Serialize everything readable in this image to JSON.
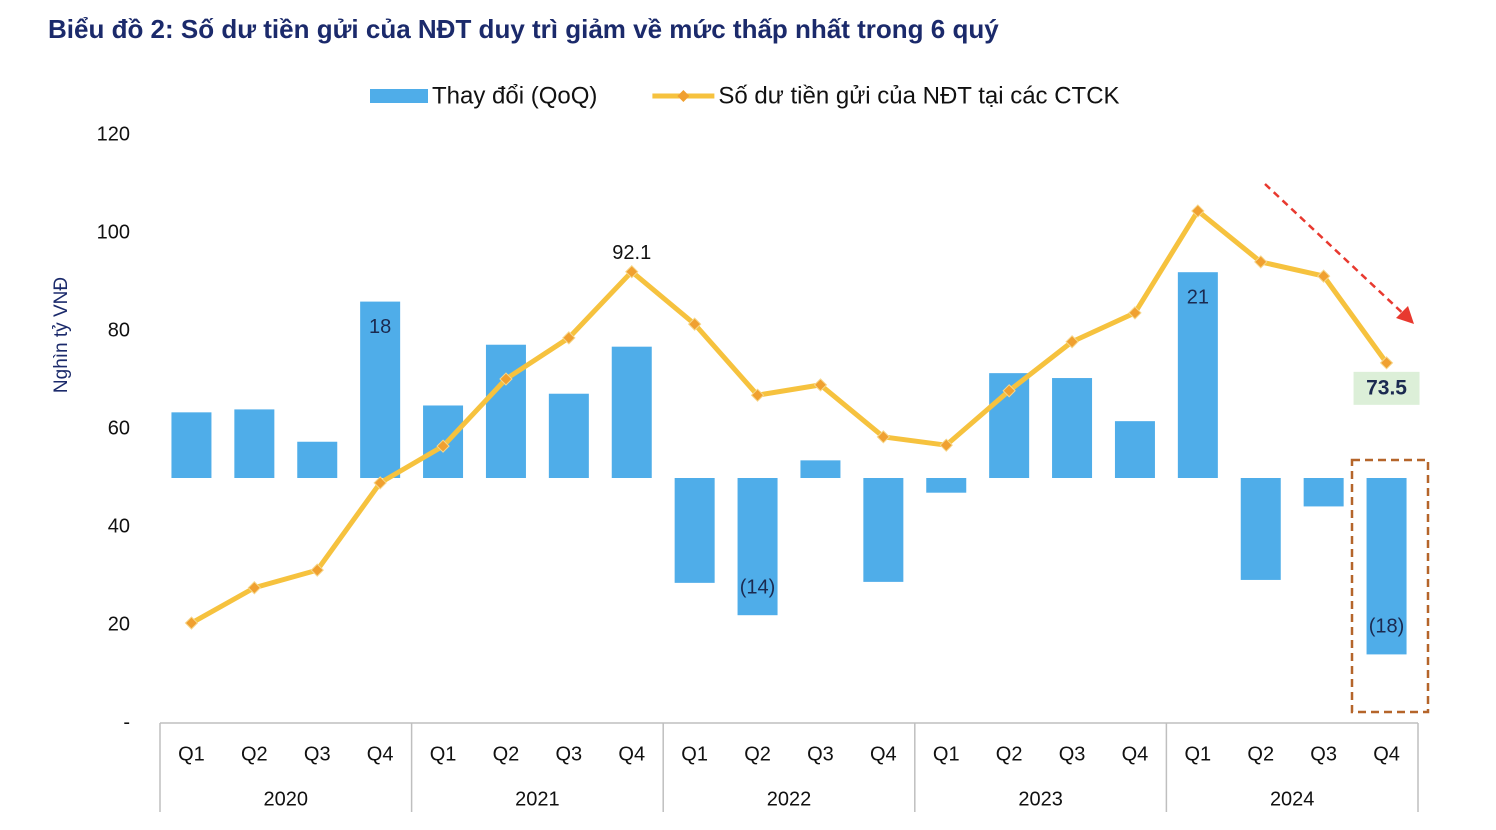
{
  "chart_data": {
    "type": "bar-line",
    "title": "Biểu đồ 2: Số dư tiền gửi của NĐT duy trì giảm về mức thấp nhất trong 6 quý",
    "y_label": "Nghìn tỷ VNĐ",
    "categories": [
      "Q1",
      "Q2",
      "Q3",
      "Q4",
      "Q1",
      "Q2",
      "Q3",
      "Q4",
      "Q1",
      "Q2",
      "Q3",
      "Q4",
      "Q1",
      "Q2",
      "Q3",
      "Q4",
      "Q1",
      "Q2",
      "Q3",
      "Q4"
    ],
    "years": [
      "2020",
      "2021",
      "2022",
      "2023",
      "2024"
    ],
    "ylim": [
      0,
      120
    ],
    "yticks": [
      {
        "value": 0,
        "label": "-"
      },
      20,
      40,
      60,
      80,
      100,
      120
    ],
    "y2lim": [
      -25,
      35
    ],
    "legend": "top",
    "series": [
      {
        "name": "Thay đổi (QoQ)",
        "type": "bar",
        "axis": "y2",
        "color": "#4fade9",
        "values": [
          6.7,
          7.0,
          3.7,
          18,
          7.4,
          13.6,
          8.6,
          13.4,
          -10.7,
          -14,
          1.8,
          -10.6,
          -1.5,
          10.7,
          10.2,
          5.8,
          21,
          -10.4,
          -2.9,
          -18
        ],
        "value_labels": [
          null,
          null,
          null,
          "18",
          null,
          null,
          null,
          null,
          null,
          "(14)",
          null,
          null,
          null,
          null,
          null,
          null,
          "21",
          null,
          null,
          "(18)"
        ]
      },
      {
        "name": "Số dư tiền gửi của NĐT tại các CTCK",
        "type": "line",
        "color": "#f6c23e",
        "marker_color": "#f0a030",
        "values": [
          20.4,
          27.6,
          31.2,
          49.0,
          56.5,
          70.2,
          78.6,
          92.1,
          81.4,
          66.9,
          69.0,
          58.4,
          56.7,
          67.8,
          77.8,
          83.7,
          104.5,
          94.1,
          91.2,
          73.5
        ],
        "value_labels": [
          null,
          null,
          null,
          null,
          null,
          null,
          null,
          "92.1",
          null,
          null,
          null,
          null,
          null,
          null,
          null,
          null,
          null,
          null,
          null,
          "73.5"
        ]
      }
    ]
  }
}
